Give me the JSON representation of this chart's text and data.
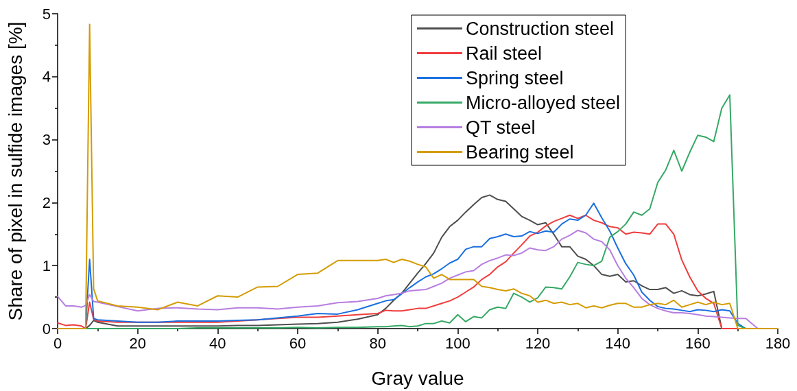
{
  "chart_data": {
    "type": "line",
    "xlabel": "Gray value",
    "ylabel": "Share of pixel in sulfide images [%]",
    "xlim": [
      0,
      180
    ],
    "xticks": [
      0,
      20,
      40,
      60,
      80,
      100,
      120,
      140,
      160,
      180
    ],
    "ylim": [
      0,
      5
    ],
    "yticks": [
      0,
      1,
      2,
      3,
      4,
      5
    ],
    "grid": false,
    "legend": "top right",
    "marker": "none",
    "line_style": "solid",
    "x": [
      0,
      2,
      4,
      6,
      7,
      8,
      9,
      10,
      15,
      20,
      25,
      30,
      35,
      40,
      45,
      50,
      55,
      60,
      65,
      70,
      75,
      80,
      82,
      84,
      86,
      88,
      90,
      92,
      94,
      96,
      98,
      100,
      102,
      104,
      106,
      108,
      110,
      112,
      114,
      116,
      118,
      120,
      122,
      124,
      126,
      128,
      130,
      132,
      134,
      136,
      138,
      140,
      142,
      144,
      146,
      148,
      150,
      152,
      154,
      156,
      158,
      160,
      162,
      164,
      166,
      168,
      170,
      172,
      175,
      180
    ],
    "series": [
      {
        "name": "Construction steel",
        "color": "#4d4d4d",
        "values": [
          0,
          0,
          0,
          0,
          0,
          0.05,
          0.13,
          0.1,
          0.04,
          0.04,
          0.04,
          0.04,
          0.04,
          0.04,
          0.05,
          0.05,
          0.06,
          0.07,
          0.08,
          0.1,
          0.15,
          0.22,
          0.32,
          0.45,
          0.56,
          0.72,
          0.88,
          1.03,
          1.2,
          1.45,
          1.62,
          1.72,
          1.85,
          1.97,
          2.08,
          2.12,
          2.05,
          2.02,
          1.9,
          1.78,
          1.72,
          1.65,
          1.68,
          1.5,
          1.3,
          1.3,
          1.15,
          1.1,
          1.0,
          0.86,
          0.83,
          0.86,
          0.74,
          0.76,
          0.68,
          0.62,
          0.62,
          0.65,
          0.56,
          0.6,
          0.54,
          0.52,
          0.55,
          0.59,
          0,
          0,
          0,
          0,
          0,
          0
        ]
      },
      {
        "name": "Rail steel",
        "color": "#f03c3c",
        "values": [
          0.09,
          0.05,
          0.06,
          0.04,
          0,
          0.42,
          0.15,
          0.12,
          0.1,
          0.1,
          0.1,
          0.1,
          0.1,
          0.1,
          0.12,
          0.14,
          0.16,
          0.18,
          0.18,
          0.2,
          0.22,
          0.24,
          0.29,
          0.28,
          0.28,
          0.3,
          0.32,
          0.32,
          0.36,
          0.4,
          0.44,
          0.5,
          0.58,
          0.66,
          0.78,
          0.86,
          0.98,
          1.06,
          1.2,
          1.33,
          1.47,
          1.53,
          1.63,
          1.7,
          1.75,
          1.8,
          1.75,
          1.8,
          1.72,
          1.68,
          1.62,
          1.6,
          1.5,
          1.53,
          1.52,
          1.5,
          1.66,
          1.66,
          1.5,
          1.09,
          0.82,
          0.6,
          0.48,
          0.4,
          0,
          0,
          0,
          0,
          null,
          null
        ]
      },
      {
        "name": "Spring steel",
        "color": "#1a6fe0",
        "values": [
          null,
          null,
          null,
          0,
          0,
          1.1,
          0.16,
          0.14,
          0.12,
          0.1,
          0.1,
          0.12,
          0.12,
          0.12,
          0.13,
          0.14,
          0.17,
          0.2,
          0.24,
          0.23,
          0.3,
          0.4,
          0.44,
          0.46,
          0.55,
          0.65,
          0.74,
          0.82,
          0.87,
          0.95,
          1.04,
          1.1,
          1.26,
          1.3,
          1.3,
          1.43,
          1.46,
          1.5,
          1.46,
          1.47,
          1.54,
          1.51,
          1.55,
          1.53,
          1.66,
          1.74,
          1.72,
          1.8,
          1.99,
          1.76,
          1.55,
          1.28,
          1.03,
          0.85,
          0.58,
          0.45,
          0.35,
          0.32,
          0.31,
          0.29,
          0.27,
          0.3,
          0.29,
          0.27,
          0.3,
          0.28,
          0.08,
          0,
          0,
          0
        ]
      },
      {
        "name": "Micro-alloyed steel",
        "color": "#35a865",
        "values": [
          null,
          null,
          null,
          0,
          0,
          0,
          0,
          0,
          0,
          0,
          0,
          0,
          0.01,
          0.01,
          0.01,
          0.01,
          0.01,
          0.02,
          0.01,
          0.02,
          0.02,
          0.03,
          0.03,
          0.04,
          0.05,
          0.03,
          0.04,
          0.08,
          0.08,
          0.12,
          0.09,
          0.22,
          0.11,
          0.19,
          0.17,
          0.3,
          0.34,
          0.32,
          0.56,
          0.5,
          0.42,
          0.49,
          0.66,
          0.65,
          0.63,
          0.82,
          1.05,
          1.02,
          1.0,
          1.07,
          1.45,
          1.54,
          1.66,
          1.85,
          1.8,
          1.9,
          2.32,
          2.52,
          2.83,
          2.5,
          2.8,
          3.07,
          3.04,
          2.97,
          3.5,
          3.71,
          0.05,
          0,
          0,
          0
        ]
      },
      {
        "name": "QT steel",
        "color": "#b77ee0",
        "values": [
          0.51,
          0.36,
          0.36,
          0.34,
          0.37,
          0.54,
          0.43,
          0.42,
          0.35,
          0.28,
          0.32,
          0.33,
          0.31,
          0.3,
          0.33,
          0.33,
          0.31,
          0.34,
          0.36,
          0.41,
          0.43,
          0.48,
          0.52,
          0.54,
          0.56,
          0.6,
          0.61,
          0.62,
          0.67,
          0.72,
          0.8,
          0.85,
          0.9,
          0.92,
          1.02,
          1.08,
          1.12,
          1.17,
          1.16,
          1.2,
          1.28,
          1.25,
          1.24,
          1.3,
          1.42,
          1.48,
          1.56,
          1.52,
          1.42,
          1.38,
          1.25,
          1.0,
          0.8,
          0.65,
          0.48,
          0.38,
          0.32,
          0.28,
          0.25,
          0.25,
          0.24,
          0.22,
          0.2,
          0.19,
          0.18,
          0.17,
          0.16,
          0.16,
          0,
          0
        ]
      },
      {
        "name": "Bearing steel",
        "color": "#d49c00",
        "values": [
          0,
          0,
          0,
          0,
          0,
          4.83,
          0.63,
          0.44,
          0.36,
          0.34,
          0.3,
          0.42,
          0.36,
          0.52,
          0.5,
          0.66,
          0.67,
          0.86,
          0.88,
          1.08,
          1.08,
          1.08,
          1.1,
          1.05,
          1.1,
          1.07,
          1.02,
          0.98,
          0.8,
          0.86,
          0.78,
          0.78,
          0.78,
          0.78,
          0.67,
          0.65,
          0.62,
          0.6,
          0.63,
          0.56,
          0.52,
          0.42,
          0.45,
          0.4,
          0.42,
          0.38,
          0.4,
          0.33,
          0.36,
          0.33,
          0.37,
          0.4,
          0.4,
          0.34,
          0.34,
          0.38,
          0.4,
          0.38,
          0.45,
          0.34,
          0.38,
          0.42,
          0.38,
          0.42,
          0.38,
          0.4,
          0,
          0,
          0,
          0
        ]
      }
    ]
  }
}
